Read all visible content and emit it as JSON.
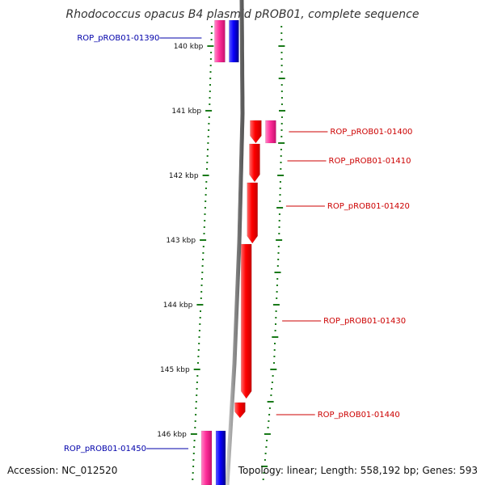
{
  "title": "Rhodococcus opacus B4 plasmid pROB01, complete sequence",
  "footer": {
    "accession": "Accession: NC_012520",
    "topology": "Topology: linear; Length: 558,192 bp; Genes: 593"
  },
  "colors": {
    "backbone": "#8a8a8a",
    "forward_gene": "#ff1a1a",
    "reverse_gene": "#0a00ff",
    "other_gene": "#ff2e9a",
    "tick": "#1a7a1a",
    "left_label": "#0000aa",
    "right_label": "#cc0000"
  },
  "chart_data": {
    "type": "linear genome map",
    "region_kbp": [
      139.6,
      146.8
    ],
    "ruler": {
      "ticks": [
        {
          "kbp": 140,
          "label": "140 kbp"
        },
        {
          "kbp": 141,
          "label": "141 kbp"
        },
        {
          "kbp": 142,
          "label": "142 kbp"
        },
        {
          "kbp": 143,
          "label": "143 kbp"
        },
        {
          "kbp": 144,
          "label": "144 kbp"
        },
        {
          "kbp": 145,
          "label": "145 kbp"
        },
        {
          "kbp": 146,
          "label": "146 kbp"
        }
      ]
    },
    "genes": [
      {
        "label": "ROP_pROB01-01390",
        "start_kbp": 139.6,
        "end_kbp": 140.25,
        "strand": "pair",
        "side": "left"
      },
      {
        "label": "ROP_pROB01-01400",
        "start_kbp": 141.15,
        "end_kbp": 141.5,
        "strand": "pair",
        "side": "right"
      },
      {
        "label": "ROP_pROB01-01410",
        "start_kbp": 141.5,
        "end_kbp": 142.1,
        "strand": "+",
        "side": "right"
      },
      {
        "label": "ROP_pROB01-01420",
        "start_kbp": 142.1,
        "end_kbp": 143.05,
        "strand": "+",
        "side": "right"
      },
      {
        "label": "ROP_pROB01-01430",
        "start_kbp": 143.05,
        "end_kbp": 145.45,
        "strand": "+",
        "side": "right"
      },
      {
        "label": "ROP_pROB01-01440",
        "start_kbp": 145.5,
        "end_kbp": 145.75,
        "strand": "+",
        "side": "right"
      },
      {
        "label": "ROP_pROB01-01450",
        "start_kbp": 145.95,
        "end_kbp": 146.8,
        "strand": "pair",
        "side": "left"
      }
    ]
  }
}
